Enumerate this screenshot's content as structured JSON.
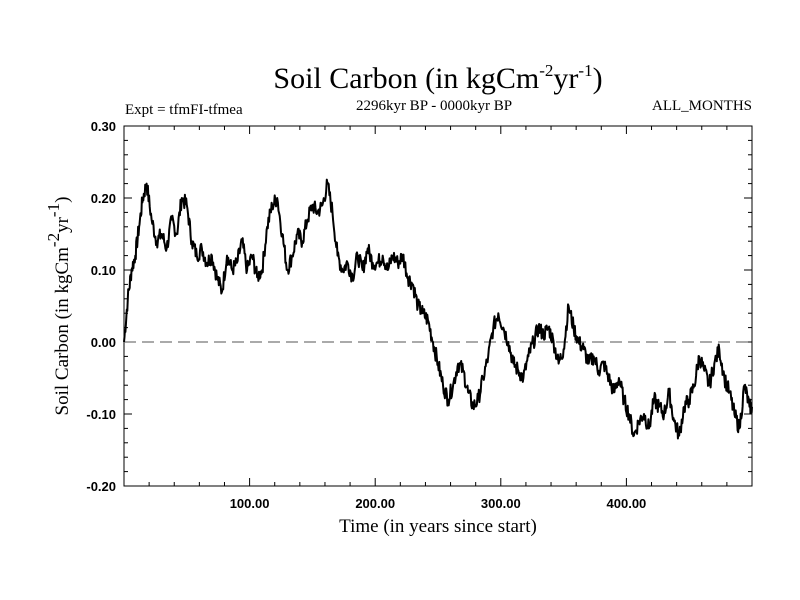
{
  "chart_data": {
    "type": "line",
    "title": "Soil Carbon (in kgCm",
    "title_exp1": "-2",
    "title_mid": "yr",
    "title_exp2": "-1",
    "title_close": ")",
    "subtitle_left": "Expt = tfmFI-tfmea",
    "subtitle_center": "2296kyr BP - 0000kyr BP",
    "subtitle_right": "ALL_MONTHS",
    "xlabel": "Time (in years since start)",
    "ylabel": "Soil Carbon (in kgCm",
    "ylabel_exp1": "-2",
    "ylabel_mid": "yr",
    "ylabel_exp2": "-1",
    "ylabel_close": ")",
    "xlim": [
      0,
      500
    ],
    "ylim": [
      -0.2,
      0.3
    ],
    "x_ticks": [
      100,
      200,
      300,
      400
    ],
    "x_tick_labels": [
      "100.00",
      "200.00",
      "300.00",
      "400.00"
    ],
    "y_ticks": [
      0.3,
      0.2,
      0.1,
      0.0,
      -0.1,
      -0.2
    ],
    "y_tick_labels": [
      "0.30",
      "0.20",
      "0.10",
      "0.00",
      "-0.10",
      "-0.20"
    ],
    "reference_line": 0.0,
    "line_color": "#000000",
    "reference_color": "#777777",
    "series": [
      {
        "name": "Soil Carbon",
        "x": [
          0,
          3,
          6,
          9,
          12,
          15,
          18,
          22,
          26,
          30,
          34,
          38,
          42,
          46,
          50,
          54,
          58,
          62,
          66,
          70,
          74,
          78,
          82,
          86,
          90,
          94,
          98,
          102,
          106,
          110,
          114,
          118,
          122,
          126,
          130,
          134,
          138,
          142,
          146,
          150,
          154,
          158,
          162,
          166,
          170,
          174,
          178,
          182,
          186,
          190,
          194,
          198,
          202,
          206,
          210,
          214,
          218,
          222,
          226,
          230,
          234,
          238,
          242,
          246,
          250,
          254,
          258,
          262,
          266,
          270,
          274,
          278,
          282,
          286,
          290,
          294,
          298,
          302,
          306,
          310,
          314,
          318,
          322,
          326,
          330,
          334,
          338,
          342,
          346,
          350,
          354,
          358,
          362,
          366,
          370,
          374,
          378,
          382,
          386,
          390,
          394,
          398,
          402,
          406,
          410,
          414,
          418,
          422,
          426,
          430,
          434,
          438,
          442,
          446,
          450,
          454,
          458,
          462,
          466,
          470,
          474,
          478,
          482,
          486,
          490,
          494,
          498,
          500
        ],
        "y": [
          0.0,
          0.06,
          0.1,
          0.12,
          0.16,
          0.2,
          0.22,
          0.17,
          0.14,
          0.15,
          0.13,
          0.17,
          0.15,
          0.2,
          0.19,
          0.14,
          0.12,
          0.13,
          0.11,
          0.12,
          0.09,
          0.07,
          0.12,
          0.1,
          0.11,
          0.14,
          0.1,
          0.12,
          0.09,
          0.1,
          0.16,
          0.19,
          0.2,
          0.15,
          0.1,
          0.12,
          0.15,
          0.14,
          0.17,
          0.19,
          0.18,
          0.19,
          0.22,
          0.18,
          0.12,
          0.1,
          0.11,
          0.09,
          0.12,
          0.1,
          0.13,
          0.11,
          0.11,
          0.12,
          0.1,
          0.12,
          0.11,
          0.12,
          0.09,
          0.08,
          0.05,
          0.04,
          0.03,
          0.0,
          -0.03,
          -0.06,
          -0.08,
          -0.06,
          -0.03,
          -0.04,
          -0.07,
          -0.09,
          -0.08,
          -0.05,
          -0.02,
          0.02,
          0.04,
          0.02,
          0.0,
          -0.03,
          -0.04,
          -0.05,
          -0.02,
          0.0,
          0.02,
          0.01,
          0.02,
          0.0,
          -0.03,
          -0.01,
          0.05,
          0.02,
          0.0,
          -0.01,
          -0.03,
          -0.02,
          -0.04,
          -0.03,
          -0.05,
          -0.07,
          -0.05,
          -0.08,
          -0.1,
          -0.13,
          -0.11,
          -0.1,
          -0.12,
          -0.08,
          -0.09,
          -0.1,
          -0.07,
          -0.11,
          -0.13,
          -0.09,
          -0.08,
          -0.06,
          -0.02,
          -0.04,
          -0.06,
          -0.03,
          -0.01,
          -0.05,
          -0.07,
          -0.1,
          -0.12,
          -0.06,
          -0.09,
          -0.09
        ]
      }
    ]
  }
}
